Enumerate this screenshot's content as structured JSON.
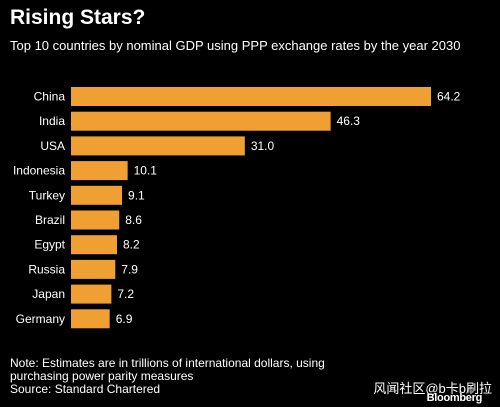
{
  "header": {
    "title": "Rising Stars?",
    "subtitle": "Top 10 countries by nominal GDP using PPP exchange rates by the year 2030"
  },
  "footer": {
    "note_line1": "Note: Estimates are in trillions of international dollars, using",
    "note_line2": "purchasing power parity measures",
    "source": "Source: Standard Chartered",
    "watermark": "风闻社区@b卡b刷拉",
    "logo": "Bloomberg"
  },
  "colors": {
    "background": "#000000",
    "bar": "#F0A033",
    "text": "#ffffff"
  },
  "chart_data": {
    "type": "bar",
    "orientation": "horizontal",
    "title": "Rising Stars?",
    "subtitle": "Top 10 countries by nominal GDP using PPP exchange rates by the year 2030",
    "categories": [
      "China",
      "India",
      "USA",
      "Indonesia",
      "Turkey",
      "Brazil",
      "Egypt",
      "Russia",
      "Japan",
      "Germany"
    ],
    "values": [
      64.2,
      46.3,
      31.0,
      10.1,
      9.1,
      8.6,
      8.2,
      7.9,
      7.2,
      6.9
    ],
    "value_labels": [
      "64.2",
      "46.3",
      "31.0",
      "10.1",
      "9.1",
      "8.6",
      "8.2",
      "7.9",
      "7.2",
      "6.9"
    ],
    "xlim": [
      0,
      64.2
    ],
    "grid": false,
    "legend": "none"
  }
}
